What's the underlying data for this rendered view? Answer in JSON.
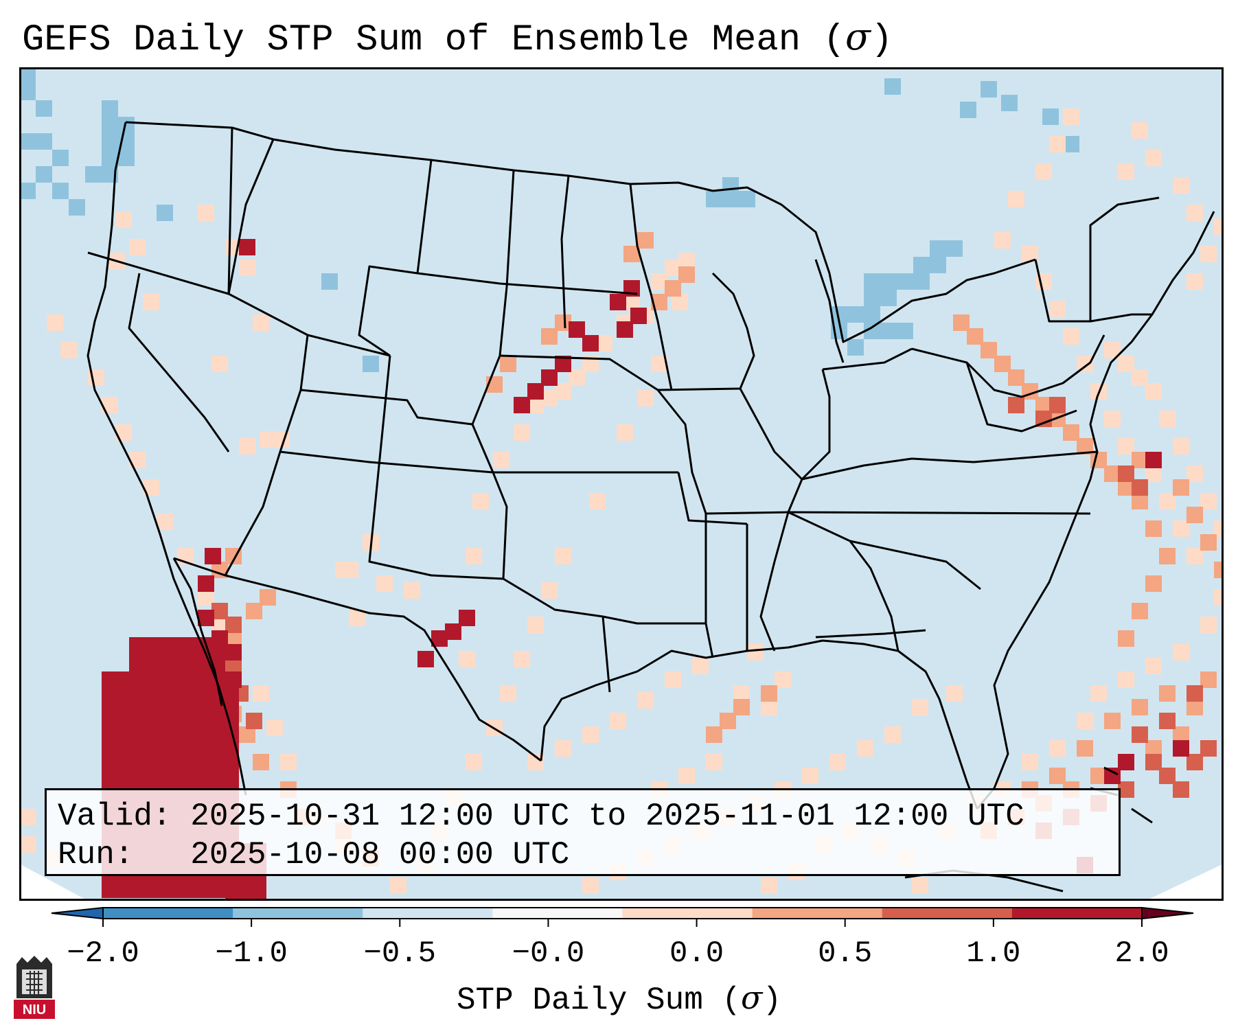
{
  "title": {
    "text": "GEFS Daily STP Sum of Ensemble Mean (",
    "symbol": "σ",
    "close": ")"
  },
  "info": {
    "valid_line": "Valid: 2025-10-31 12:00 UTC to 2025-11-01 12:00 UTC",
    "run_line": "Run:   2025-10-08 00:00 UTC"
  },
  "colorbar": {
    "label_text": "STP Daily Sum (",
    "label_symbol": "σ",
    "label_close": ")",
    "ticks": [
      "−2.0",
      "−1.0",
      "−0.5",
      "−0.0",
      "0.0",
      "0.5",
      "1.0",
      "2.0"
    ],
    "colors": [
      "#3f8fc5",
      "#8fc3dd",
      "#d1e5f0",
      "#f7f7f7",
      "#fddbc7",
      "#f4a582",
      "#d6604d",
      "#b2182b"
    ]
  },
  "map": {
    "background_color": "#d1e5f0",
    "legend_colors": {
      "strong_negative": "#8fc3dd",
      "weak_positive": "#fddbc7",
      "moderate_positive": "#f4a582",
      "high_positive": "#d6604d",
      "extreme_positive": "#b2182b"
    }
  },
  "logo": {
    "text": "NIU"
  }
}
